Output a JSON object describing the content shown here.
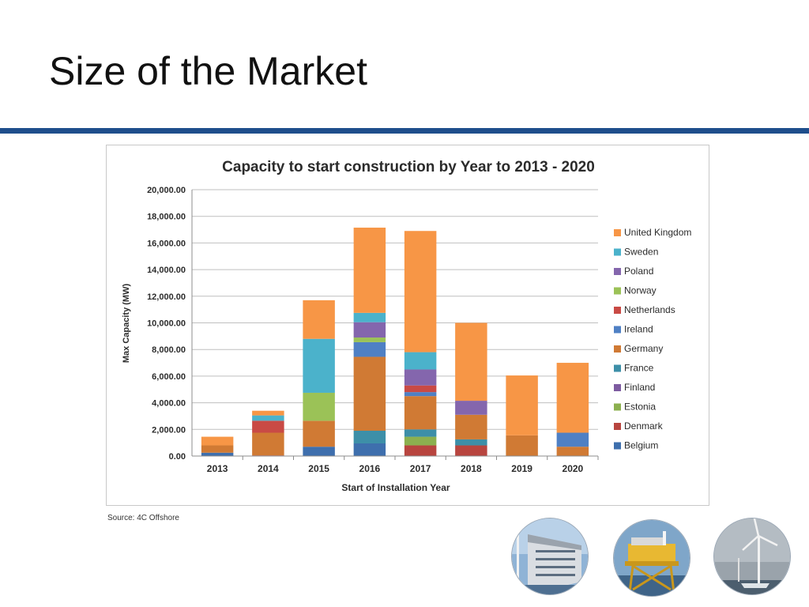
{
  "slide": {
    "title": "Size of the Market",
    "source": "Source: 4C Offshore"
  },
  "colors": {
    "accent_rule": "#1f4e8c"
  },
  "photos": [
    {
      "name": "offshore-accommodation-platform-photo"
    },
    {
      "name": "offshore-substation-platform-photo"
    },
    {
      "name": "offshore-wind-turbine-photo"
    }
  ],
  "chart_data": {
    "type": "bar",
    "stacked": true,
    "title": "Capacity to start construction by Year to 2013 - 2020",
    "xlabel": "Start of Installation Year",
    "ylabel": "Max Capacity (MW)",
    "ylim": [
      0,
      20000
    ],
    "yticks": [
      "0.00",
      "2,000.00",
      "4,000.00",
      "6,000.00",
      "8,000.00",
      "10,000.00",
      "12,000.00",
      "14,000.00",
      "16,000.00",
      "18,000.00",
      "20,000.00"
    ],
    "grid": true,
    "legend_position": "right",
    "categories": [
      "2013",
      "2014",
      "2015",
      "2016",
      "2017",
      "2018",
      "2019",
      "2020"
    ],
    "series": [
      {
        "name": "Belgium",
        "color": "#3e6fad",
        "values": [
          250,
          0,
          700,
          950,
          0,
          0,
          0,
          0
        ]
      },
      {
        "name": "Denmark",
        "color": "#b8453f",
        "values": [
          0,
          50,
          0,
          0,
          800,
          800,
          0,
          0
        ]
      },
      {
        "name": "Estonia",
        "color": "#8cb04f",
        "values": [
          0,
          0,
          0,
          0,
          650,
          0,
          0,
          0
        ]
      },
      {
        "name": "Finland",
        "color": "#7d5ba0",
        "values": [
          0,
          0,
          0,
          0,
          0,
          0,
          0,
          0
        ]
      },
      {
        "name": "France",
        "color": "#3d8fa8",
        "values": [
          0,
          0,
          0,
          950,
          550,
          450,
          0,
          0
        ]
      },
      {
        "name": "Germany",
        "color": "#d07a34",
        "values": [
          550,
          1700,
          1950,
          5550,
          2500,
          1850,
          1550,
          700
        ]
      },
      {
        "name": "Ireland",
        "color": "#4f80c4",
        "values": [
          0,
          0,
          0,
          1100,
          300,
          0,
          0,
          1050
        ]
      },
      {
        "name": "Netherlands",
        "color": "#c94a45",
        "values": [
          0,
          900,
          0,
          0,
          500,
          0,
          0,
          0
        ]
      },
      {
        "name": "Norway",
        "color": "#9bc257",
        "values": [
          0,
          0,
          2100,
          350,
          0,
          0,
          0,
          0
        ]
      },
      {
        "name": "Poland",
        "color": "#8466ad",
        "values": [
          0,
          0,
          0,
          1150,
          1200,
          1050,
          0,
          0
        ]
      },
      {
        "name": "Sweden",
        "color": "#4bb2cb",
        "values": [
          0,
          400,
          4050,
          700,
          1300,
          0,
          0,
          0
        ]
      },
      {
        "name": "United Kingdom",
        "color": "#f79646",
        "values": [
          650,
          350,
          2900,
          6400,
          9100,
          5850,
          4500,
          5250
        ]
      }
    ]
  }
}
